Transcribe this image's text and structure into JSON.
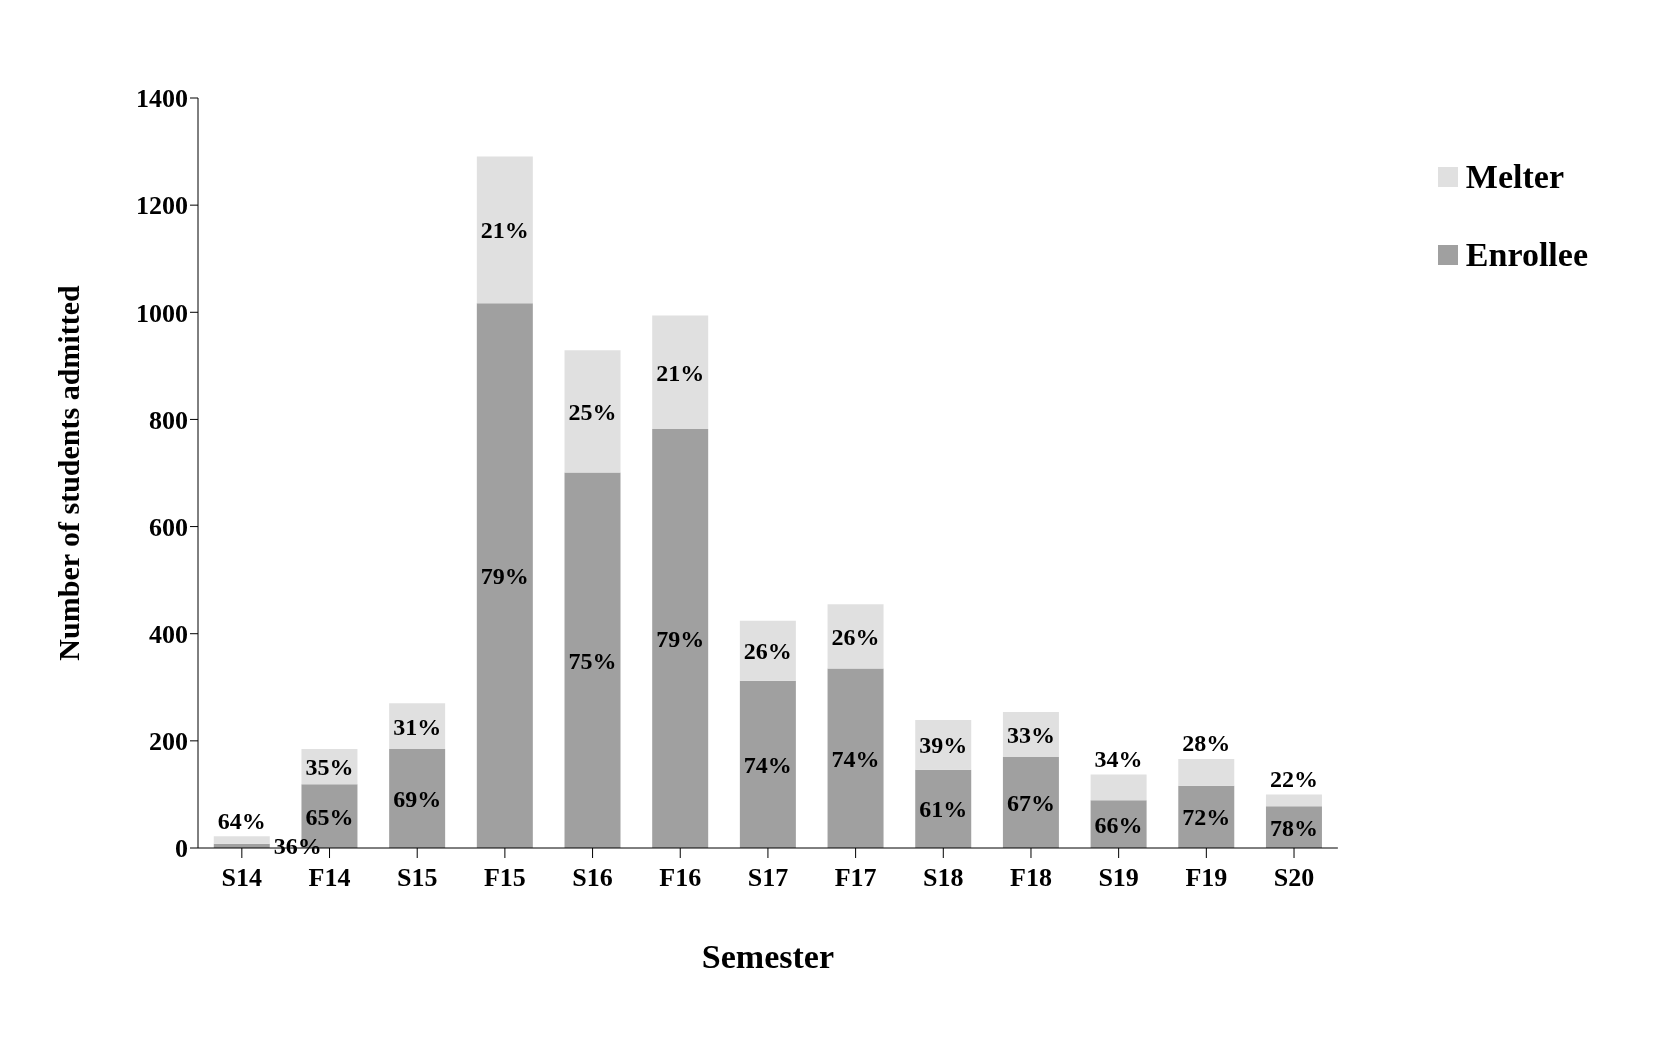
{
  "chart_data": {
    "type": "bar",
    "stacked": true,
    "xlabel": "Semester",
    "ylabel": "Number of students admitted",
    "categories": [
      "S14",
      "F14",
      "S15",
      "F15",
      "S16",
      "F16",
      "S17",
      "F17",
      "S18",
      "F18",
      "S19",
      "F19",
      "S20"
    ],
    "series": [
      {
        "name": "Enrollee",
        "color": "#a0a0a0",
        "values": [
          8,
          119,
          185,
          1017,
          701,
          782,
          312,
          335,
          146,
          170,
          89,
          116,
          78
        ]
      },
      {
        "name": "Melter",
        "color": "#e0e0e0",
        "values": [
          14,
          66,
          85,
          274,
          228,
          212,
          112,
          120,
          93,
          84,
          48,
          50,
          22
        ]
      }
    ],
    "annotations": [
      "64%",
      "36%",
      "35%",
      "65%",
      "31%",
      "69%",
      "21%",
      "79%",
      "25%",
      "75%",
      "21%",
      "79%",
      "26%",
      "74%",
      "26%",
      "74%",
      "39%",
      "61%",
      "33%",
      "67%",
      "34%",
      "66%",
      "28%",
      "72%",
      "22%",
      "78%"
    ],
    "ylim": [
      0,
      1400
    ],
    "yticks": [
      0,
      200,
      400,
      600,
      800,
      1000,
      1200,
      1400
    ],
    "grid": false,
    "legend": "top right"
  }
}
